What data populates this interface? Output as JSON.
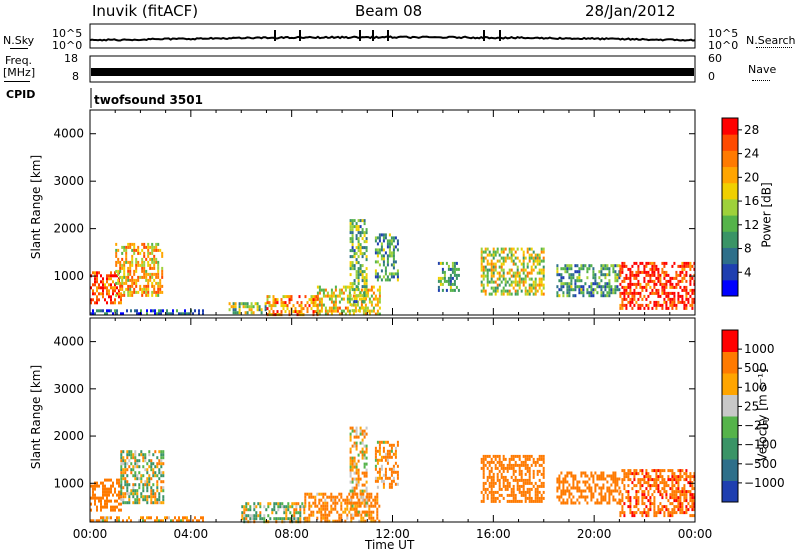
{
  "header": {
    "station": "Inuvik (fitACF)",
    "beam": "Beam 08",
    "date": "28/Jan/2012"
  },
  "strip_panels": {
    "nsky_label": "N.Sky",
    "nsky_ticks": [
      "10^5",
      "10^0"
    ],
    "nsearch_label": "N.Search",
    "nsearch_ticks": [
      "10^5",
      "10^0"
    ],
    "freq_label": "Freq.",
    "freq_unit": "[MHz]",
    "freq_ticks": [
      "18",
      "8"
    ],
    "nave_label": "Nave",
    "nave_ticks": [
      "60",
      "0"
    ],
    "cpid_label": "CPID",
    "cpid_value": "twofsound 3501"
  },
  "chart_data": [
    {
      "type": "heatmap",
      "title": "",
      "xlabel": "",
      "ylabel": "Slant Range [km]",
      "xlim": [
        0,
        24
      ],
      "ylim": [
        180,
        4500
      ],
      "y_ticks": [
        1000,
        2000,
        3000,
        4000
      ],
      "colorbar": {
        "label": "Power [dB]",
        "range": [
          0,
          30
        ],
        "ticks": [
          "4",
          "8",
          "12",
          "16",
          "20",
          "24",
          "28"
        ],
        "colors": [
          "#0000ff",
          "#1f3fb0",
          "#2e6f8a",
          "#3a9466",
          "#55b34a",
          "#9ed13b",
          "#f0d000",
          "#ffa500",
          "#ff7a00",
          "#ff4a00",
          "#ff0000"
        ]
      },
      "echo_regions": [
        {
          "t": [
            0.0,
            1.2
          ],
          "range_km": [
            450,
            1100
          ],
          "value_db": 26
        },
        {
          "t": [
            1.0,
            2.9
          ],
          "range_km": [
            600,
            1700
          ],
          "value_db": 20
        },
        {
          "t": [
            0.0,
            4.5
          ],
          "range_km": [
            180,
            300
          ],
          "value_db": 6
        },
        {
          "t": [
            5.5,
            7.0
          ],
          "range_km": [
            200,
            450
          ],
          "value_db": 14
        },
        {
          "t": [
            7.0,
            9.0
          ],
          "range_km": [
            200,
            600
          ],
          "value_db": 22
        },
        {
          "t": [
            9.0,
            11.5
          ],
          "range_km": [
            200,
            800
          ],
          "value_db": 18
        },
        {
          "t": [
            10.3,
            11.0
          ],
          "range_km": [
            300,
            2200
          ],
          "value_db": 12
        },
        {
          "t": [
            11.3,
            12.2
          ],
          "range_km": [
            900,
            1900
          ],
          "value_db": 10
        },
        {
          "t": [
            13.8,
            14.6
          ],
          "range_km": [
            700,
            1300
          ],
          "value_db": 10
        },
        {
          "t": [
            15.5,
            18.0
          ],
          "range_km": [
            600,
            1600
          ],
          "value_db": 16
        },
        {
          "t": [
            18.5,
            21.0
          ],
          "range_km": [
            600,
            1250
          ],
          "value_db": 10
        },
        {
          "t": [
            21.0,
            24.0
          ],
          "range_km": [
            300,
            1300
          ],
          "value_db": 28
        }
      ]
    },
    {
      "type": "heatmap",
      "title": "",
      "xlabel": "Time UT",
      "ylabel": "Slant Range [km]",
      "xlim": [
        0,
        24
      ],
      "ylim": [
        180,
        4500
      ],
      "x_ticks": [
        "00:00",
        "04:00",
        "08:00",
        "12:00",
        "16:00",
        "20:00",
        "00:00"
      ],
      "y_ticks": [
        1000,
        2000,
        3000,
        4000
      ],
      "colorbar": {
        "label": "Velocity [m s⁻¹]",
        "ticks": [
          "1000",
          "500",
          "100",
          "25",
          "−25",
          "−100",
          "−500",
          "−1000"
        ],
        "colors": [
          "#1f3fb0",
          "#2e6f8a",
          "#3a9466",
          "#55b34a",
          "#c8c8c8",
          "#ffa500",
          "#ff7a00",
          "#ff0000"
        ]
      },
      "echo_regions": [
        {
          "t": [
            0.0,
            1.2
          ],
          "range_km": [
            450,
            1100
          ],
          "value_ms": -300
        },
        {
          "t": [
            1.2,
            2.9
          ],
          "range_km": [
            600,
            1700
          ],
          "value_ms": 50
        },
        {
          "t": [
            0.0,
            4.5
          ],
          "range_km": [
            180,
            300
          ],
          "value_ms": -150
        },
        {
          "t": [
            6.0,
            8.5
          ],
          "range_km": [
            200,
            600
          ],
          "value_ms": 50
        },
        {
          "t": [
            8.5,
            11.5
          ],
          "range_km": [
            200,
            800
          ],
          "value_ms": -200
        },
        {
          "t": [
            10.3,
            11.0
          ],
          "range_km": [
            300,
            2200
          ],
          "value_ms": -100
        },
        {
          "t": [
            11.3,
            12.2
          ],
          "range_km": [
            900,
            1900
          ],
          "value_ms": -150
        },
        {
          "t": [
            15.5,
            18.0
          ],
          "range_km": [
            600,
            1600
          ],
          "value_ms": -300
        },
        {
          "t": [
            18.5,
            21.0
          ],
          "range_km": [
            600,
            1250
          ],
          "value_ms": -300
        },
        {
          "t": [
            21.0,
            24.0
          ],
          "range_km": [
            300,
            1300
          ],
          "value_ms": -400
        }
      ]
    }
  ]
}
